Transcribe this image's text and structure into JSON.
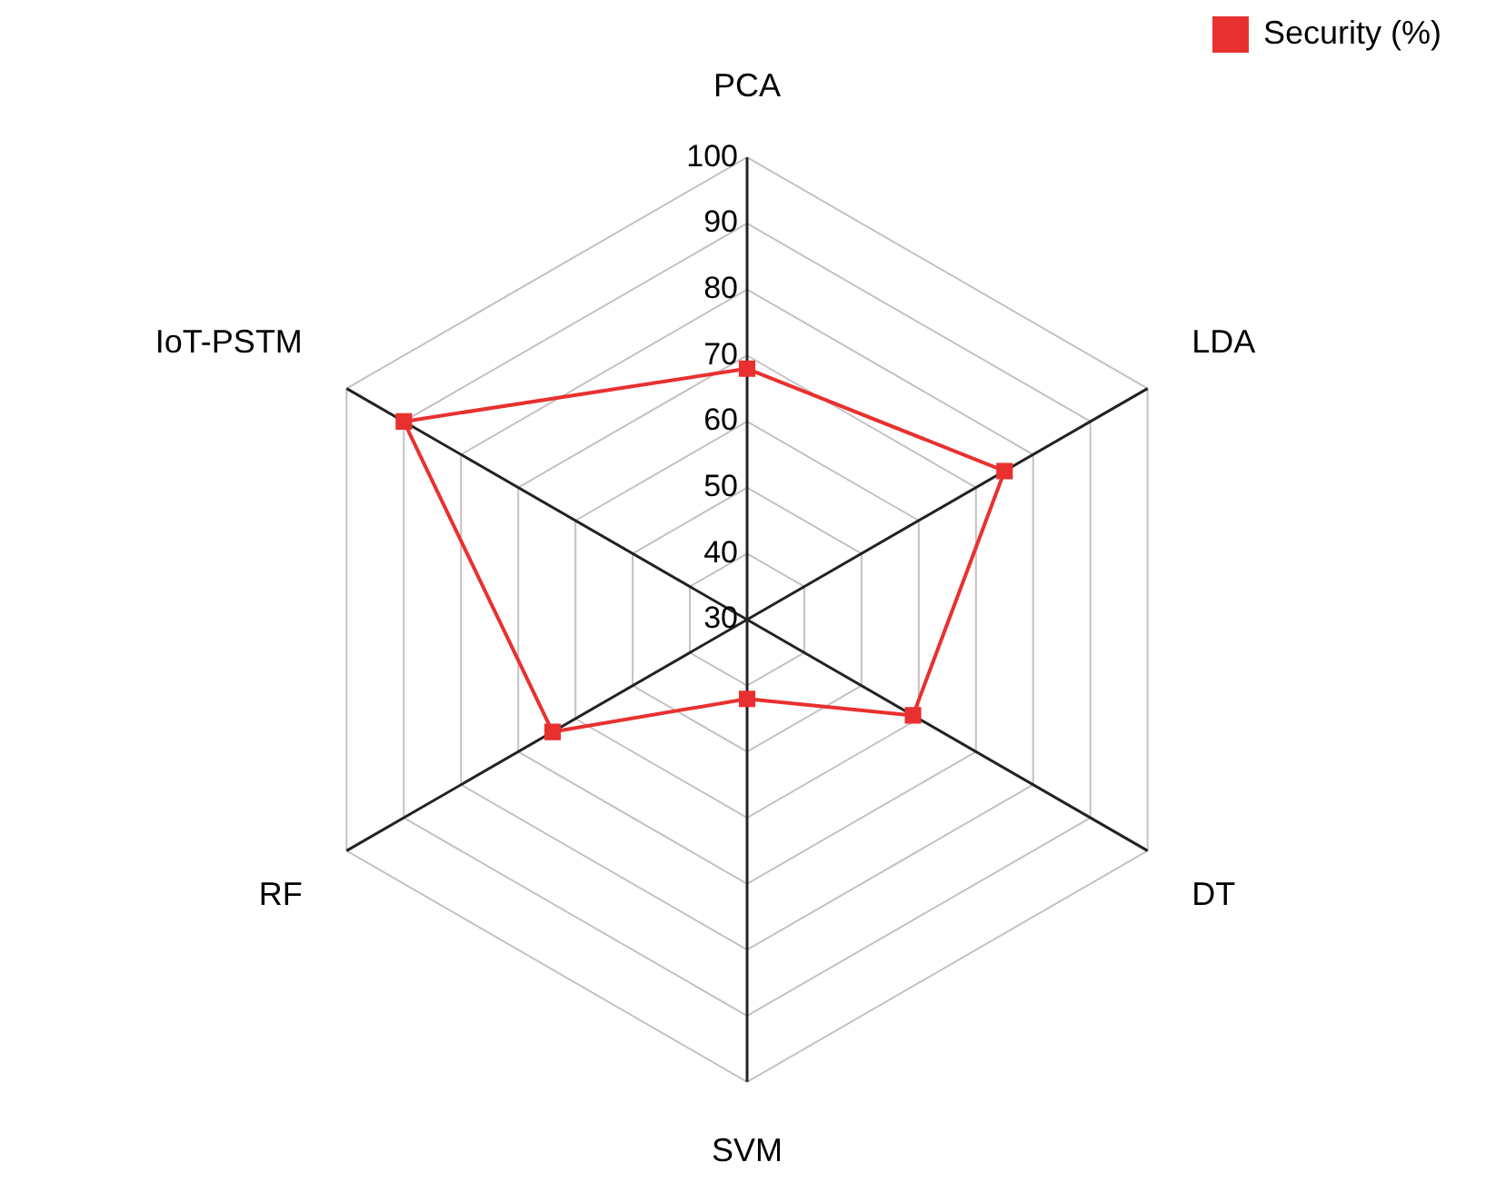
{
  "chart_data": {
    "type": "radar",
    "categories": [
      "PCA",
      "LDA",
      "DT",
      "SVM",
      "RF",
      "IoT-PSTM"
    ],
    "series": [
      {
        "name": "Security (%)",
        "color": "#e8312f",
        "values": [
          68,
          75,
          59,
          42,
          64,
          90
        ]
      }
    ],
    "ylim": [
      30,
      100
    ],
    "yticks": [
      30,
      40,
      50,
      60,
      70,
      80,
      90,
      100
    ],
    "legend": "top right",
    "marker": "square",
    "line_style": "solid",
    "grid": true
  }
}
